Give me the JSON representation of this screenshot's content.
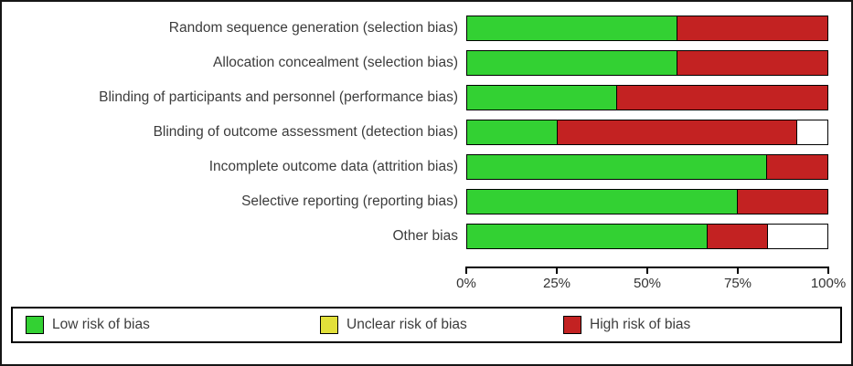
{
  "chart_data": {
    "type": "bar",
    "orientation": "horizontal",
    "stacked": true,
    "title": "",
    "xlabel": "",
    "ylabel": "",
    "xlim": [
      0,
      100
    ],
    "x_ticks": [
      "0%",
      "25%",
      "50%",
      "75%",
      "100%"
    ],
    "grid": false,
    "legend_position": "bottom",
    "categories": [
      "Random sequence generation (selection bias)",
      "Allocation concealment (selection bias)",
      "Blinding of participants and personnel (performance bias)",
      "Blinding of outcome assessment (detection bias)",
      "Incomplete outcome data (attrition bias)",
      "Selective reporting (reporting bias)",
      "Other bias"
    ],
    "series": [
      {
        "name": "Low risk of bias",
        "key": "low-risk",
        "color": "#33d133",
        "values": [
          58.3,
          58.3,
          41.7,
          25.0,
          83.3,
          75.0,
          66.7
        ]
      },
      {
        "name": "Unclear risk of bias",
        "key": "unclear-risk",
        "color": "#e2e03a",
        "values": [
          0,
          0,
          0,
          0,
          0,
          0,
          0
        ]
      },
      {
        "name": "High risk of bias",
        "key": "high-risk",
        "color": "#c32222",
        "values": [
          41.7,
          41.7,
          58.3,
          66.7,
          16.7,
          25.0,
          16.7
        ]
      }
    ],
    "note": "Segments not summing to 100% are rendered as empty (white) bar remainder"
  }
}
